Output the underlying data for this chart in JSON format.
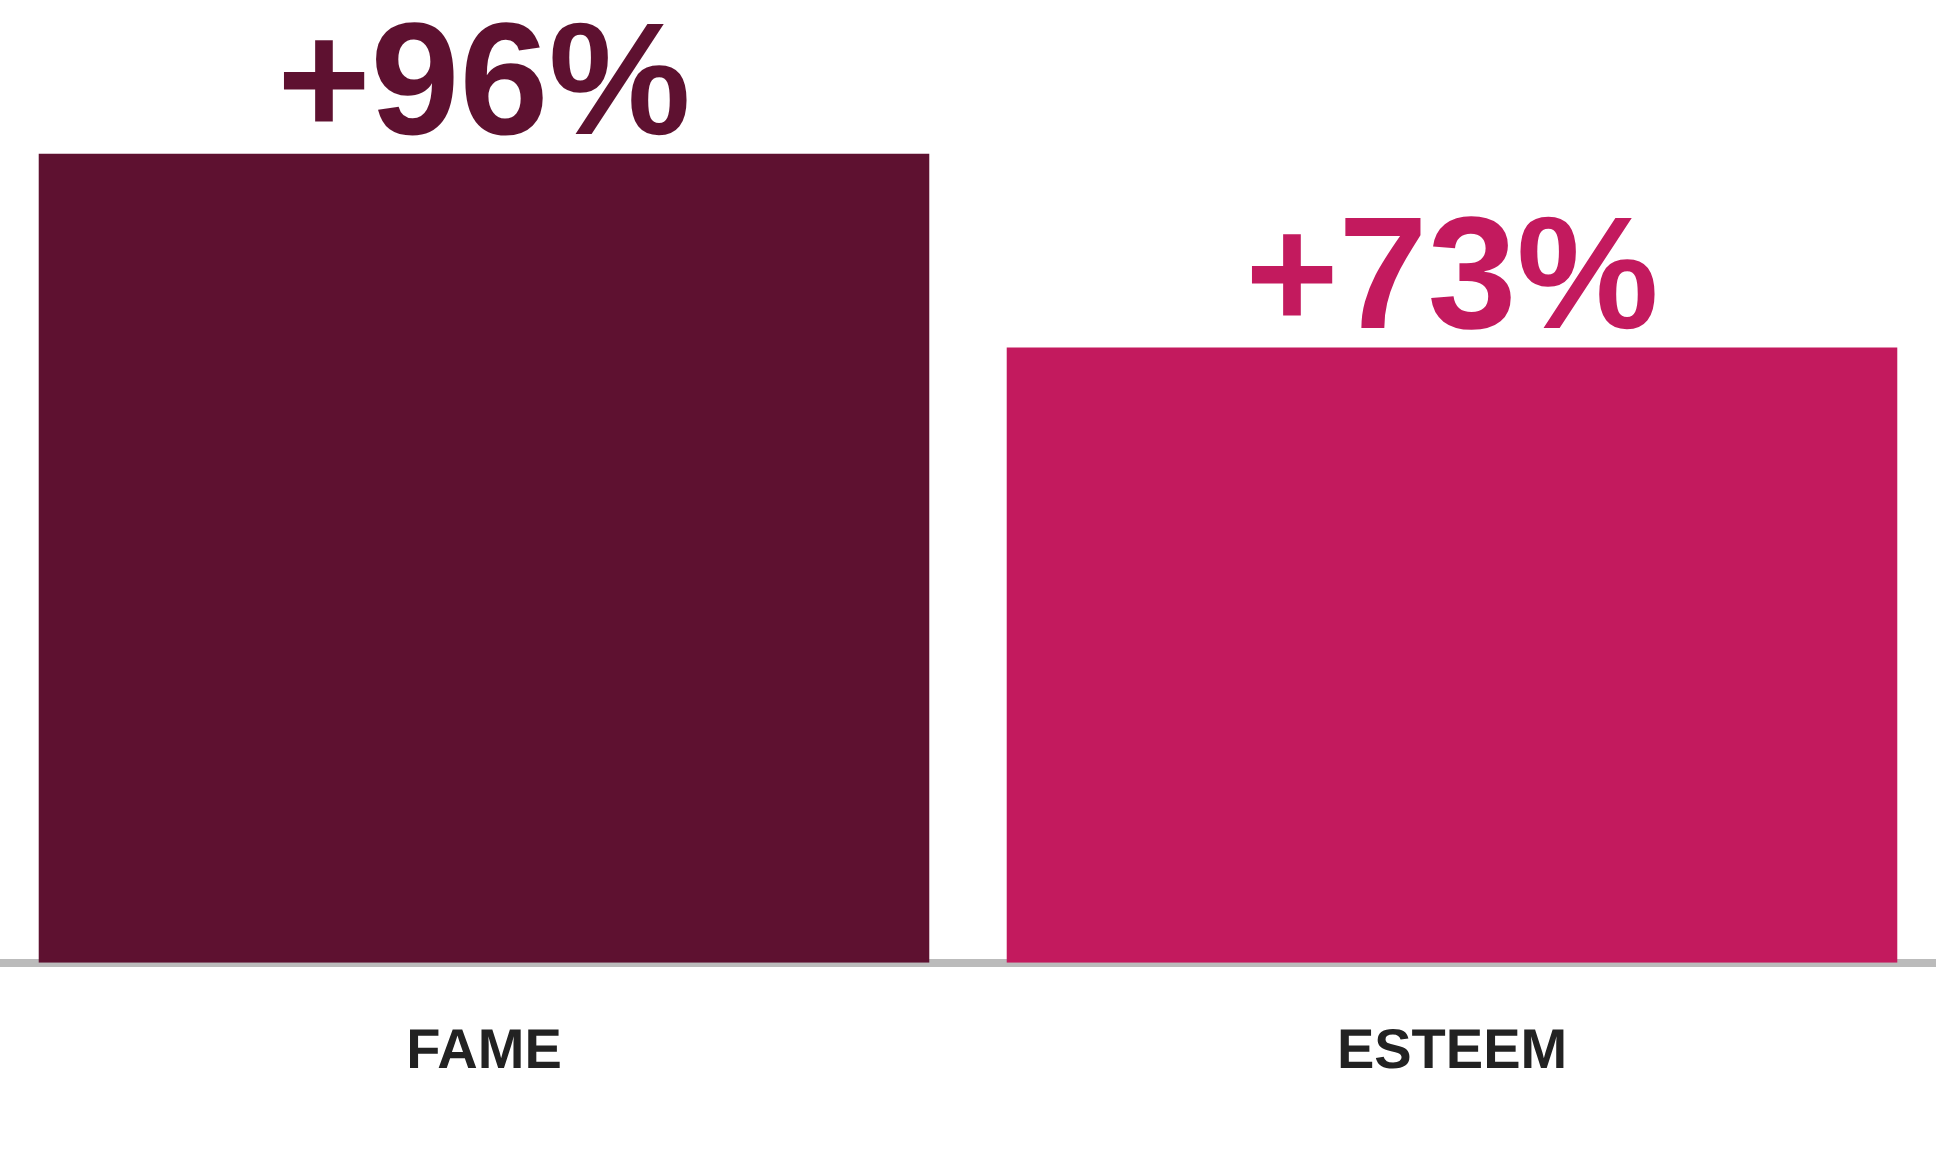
{
  "chart_data": {
    "type": "bar",
    "categories": [
      "FAME",
      "ESTEEM"
    ],
    "values": [
      96,
      73
    ],
    "colors": [
      "#5e1130",
      "#c31a5e"
    ],
    "value_labels": [
      "+96%",
      "+73%"
    ],
    "grid": false,
    "legend": false
  }
}
